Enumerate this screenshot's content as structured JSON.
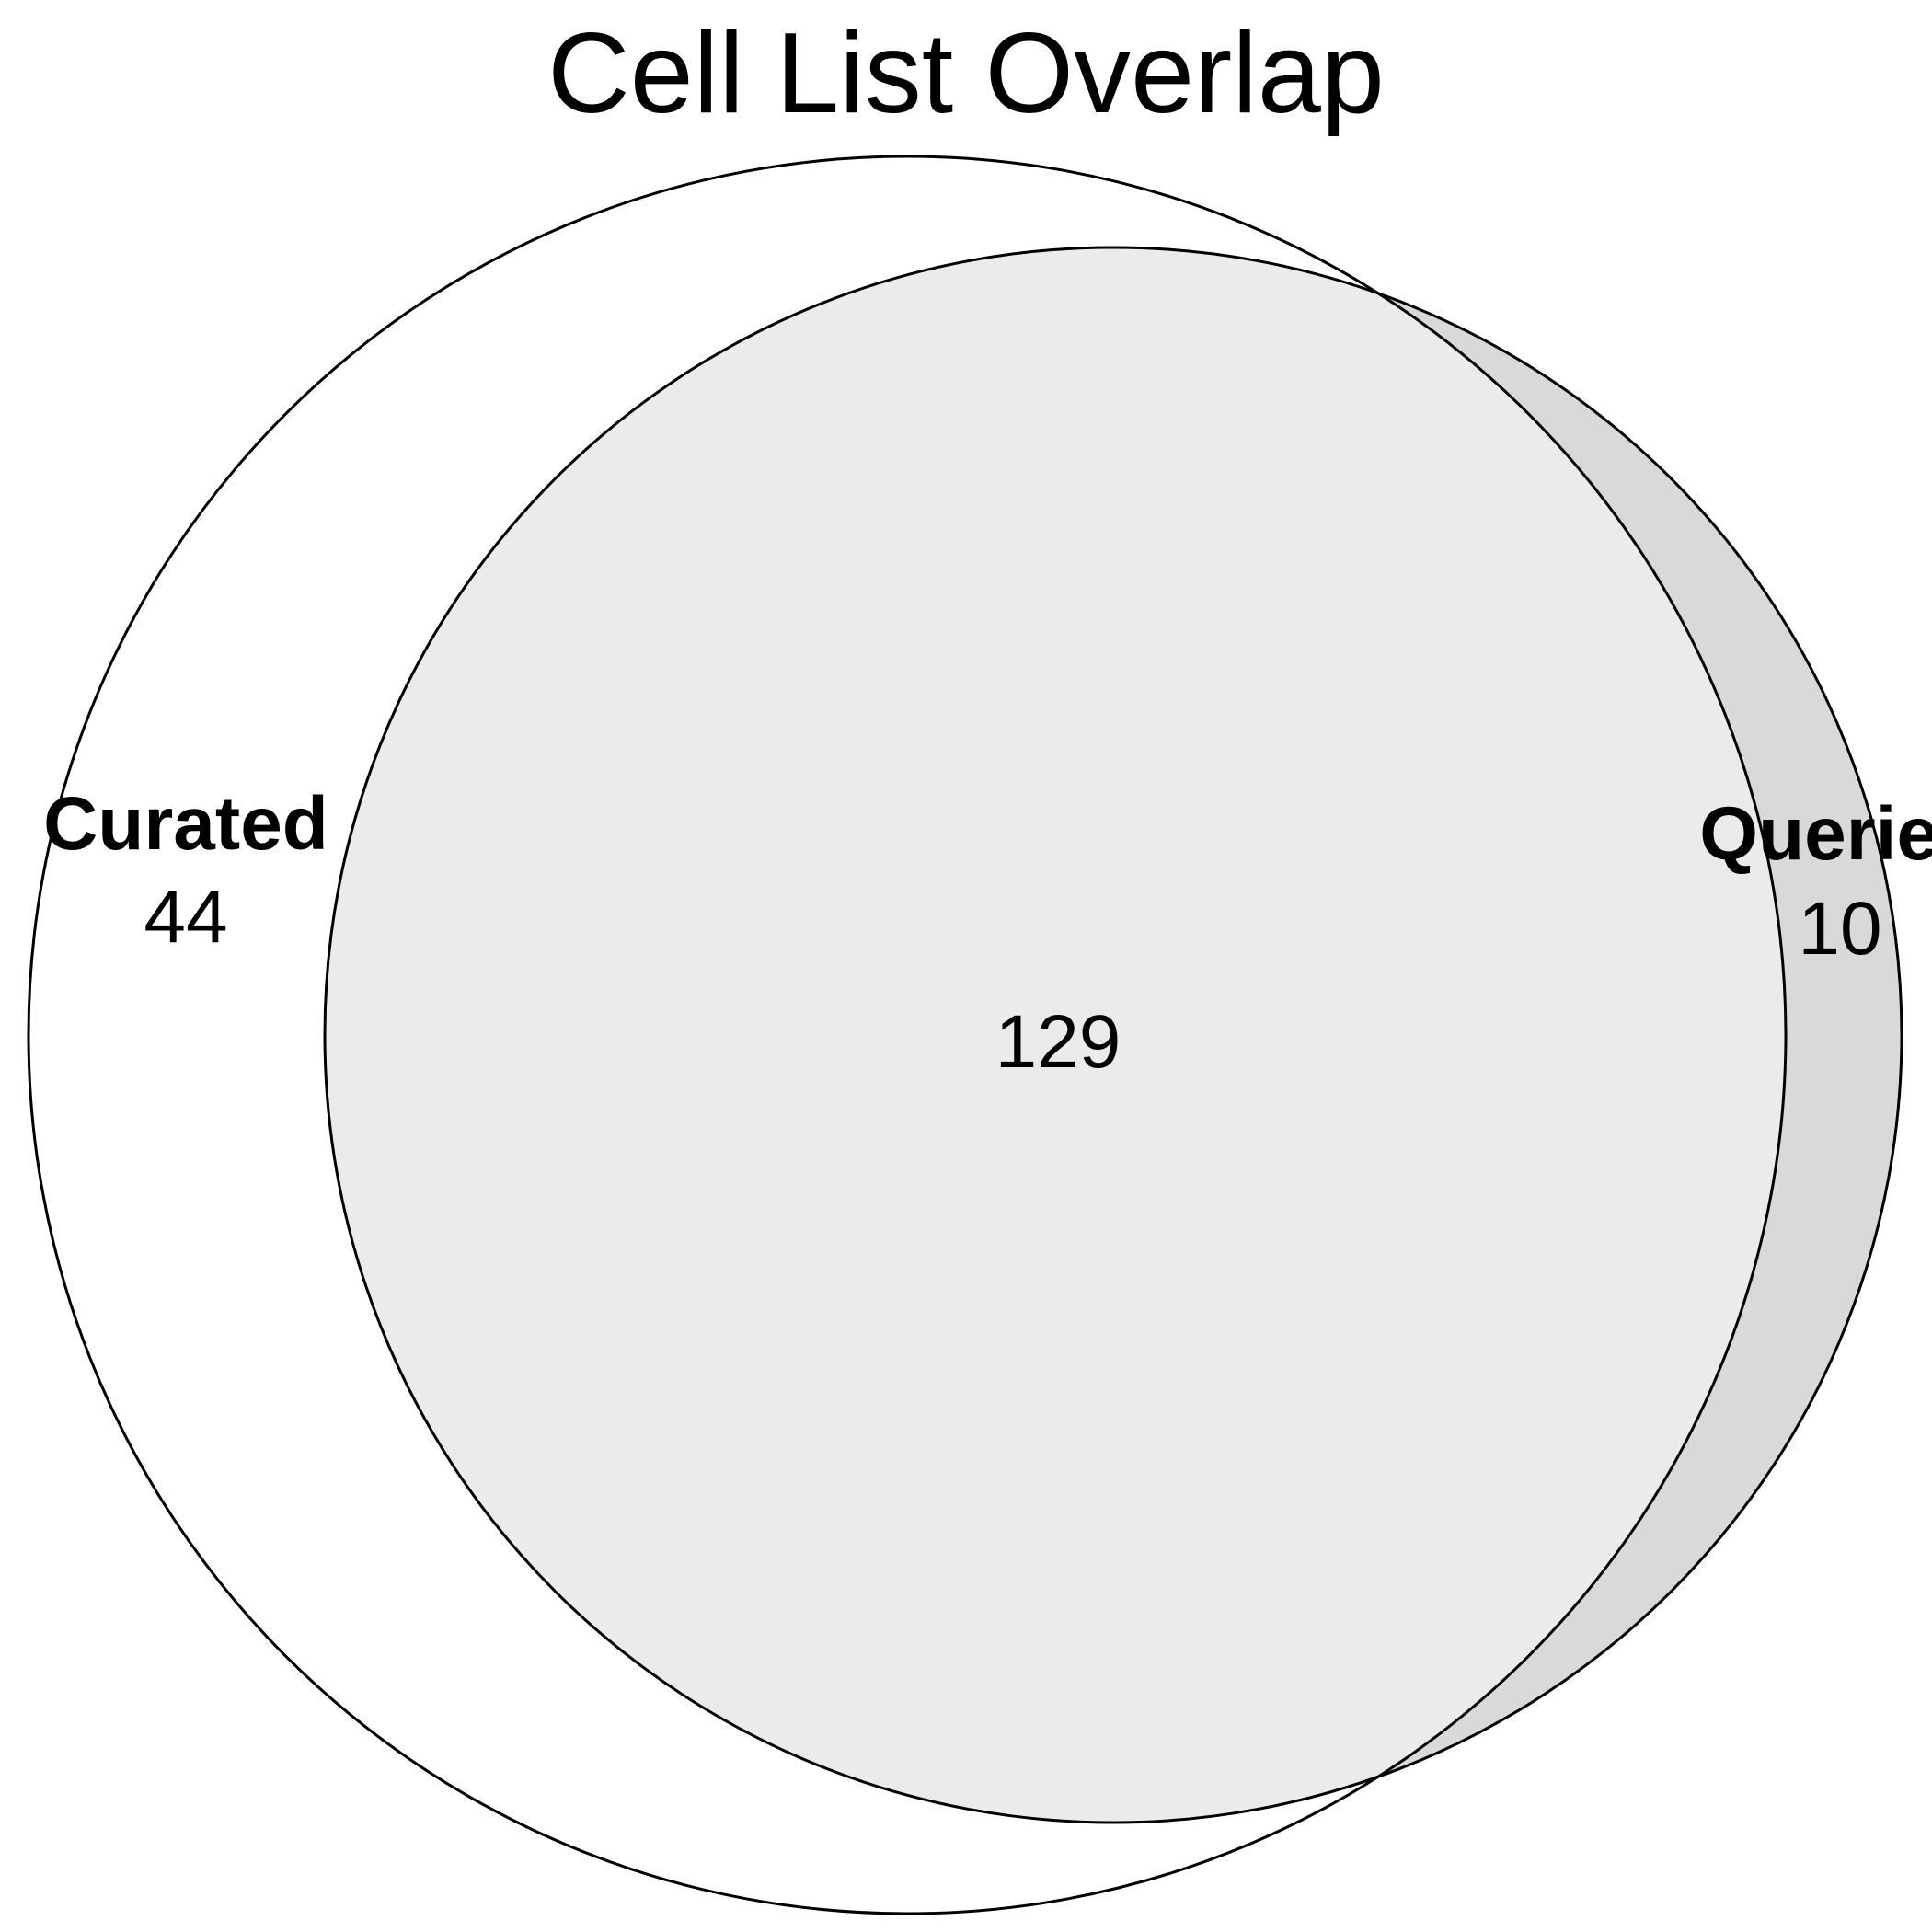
{
  "title": "Cell List Overlap",
  "sets": [
    {
      "name": "Curated",
      "only_count": "44"
    },
    {
      "name": "Queries",
      "only_count": "10"
    }
  ],
  "intersection_count": "129",
  "colors": {
    "background": "#ffffff",
    "curated_fill": "#ffffff",
    "queries_fill": "#d9d9d9",
    "intersection_fill": "#ebebeb",
    "outline": "#000000"
  }
}
